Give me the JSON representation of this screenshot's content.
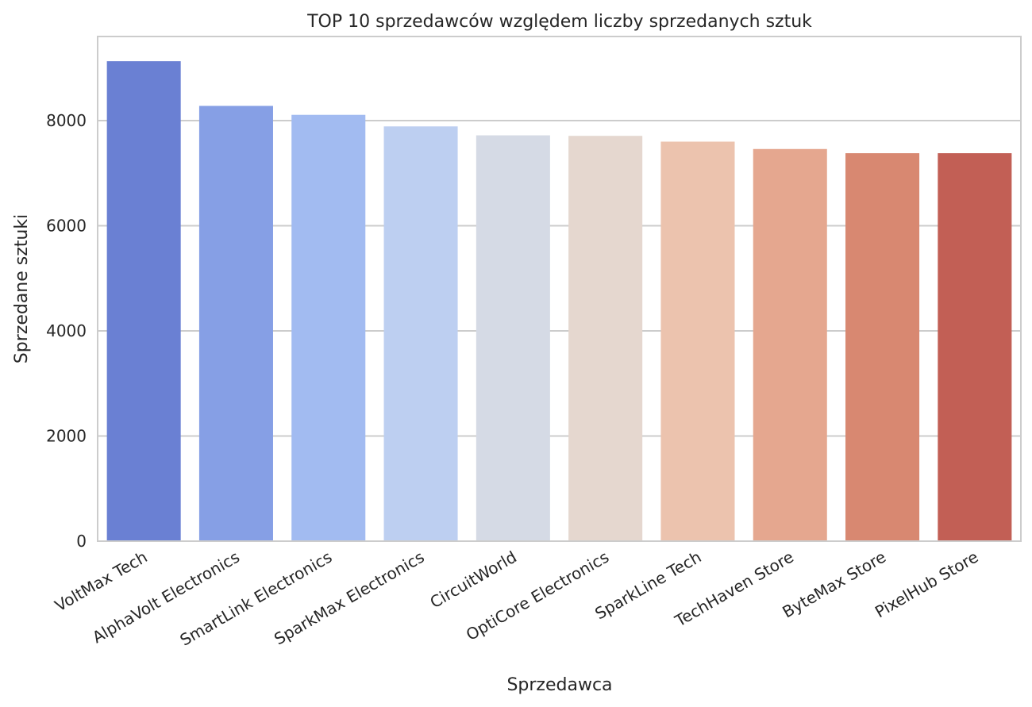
{
  "chart_data": {
    "type": "bar",
    "title": "TOP 10 sprzedawców względem liczby sprzedanych sztuk",
    "xlabel": "Sprzedawca",
    "ylabel": "Sprzedane sztuki",
    "categories": [
      "VoltMax Tech",
      "AlphaVolt Electronics",
      "SmartLink Electronics",
      "SparkMax Electronics",
      "CircuitWorld",
      "OptiCore Electronics",
      "SparkLine Tech",
      "TechHaven Store",
      "ByteMax Store",
      "PixelHub Store"
    ],
    "values": [
      9130,
      8280,
      8110,
      7890,
      7720,
      7710,
      7600,
      7460,
      7380,
      7380
    ],
    "colors": [
      "#6a80d3",
      "#869fe5",
      "#a2bbf1",
      "#bdcff1",
      "#d5dae5",
      "#e5d7cf",
      "#ecc3ae",
      "#e5a78f",
      "#d88871",
      "#c25f55"
    ],
    "ylim": [
      0,
      9600
    ],
    "yticks": [
      0,
      2000,
      4000,
      6000,
      8000
    ],
    "grid": "horizontal",
    "legend": "none"
  }
}
